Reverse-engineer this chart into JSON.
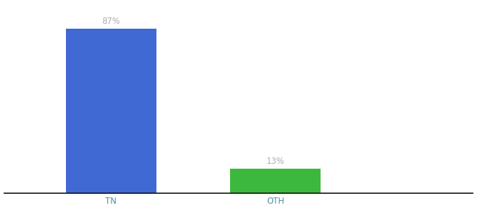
{
  "categories": [
    "TN",
    "OTH"
  ],
  "values": [
    87,
    13
  ],
  "bar_colors": [
    "#4169d4",
    "#3cb83c"
  ],
  "label_texts": [
    "87%",
    "13%"
  ],
  "background_color": "#ffffff",
  "axis_line_color": "#111111",
  "text_color": "#aaaaaa",
  "tick_color": "#4a90a4",
  "label_fontsize": 8.5,
  "tick_fontsize": 8.5,
  "ylim": [
    0,
    100
  ],
  "bar_width": 0.55,
  "x_positions": [
    0,
    1
  ],
  "xlim": [
    -0.65,
    2.2
  ]
}
